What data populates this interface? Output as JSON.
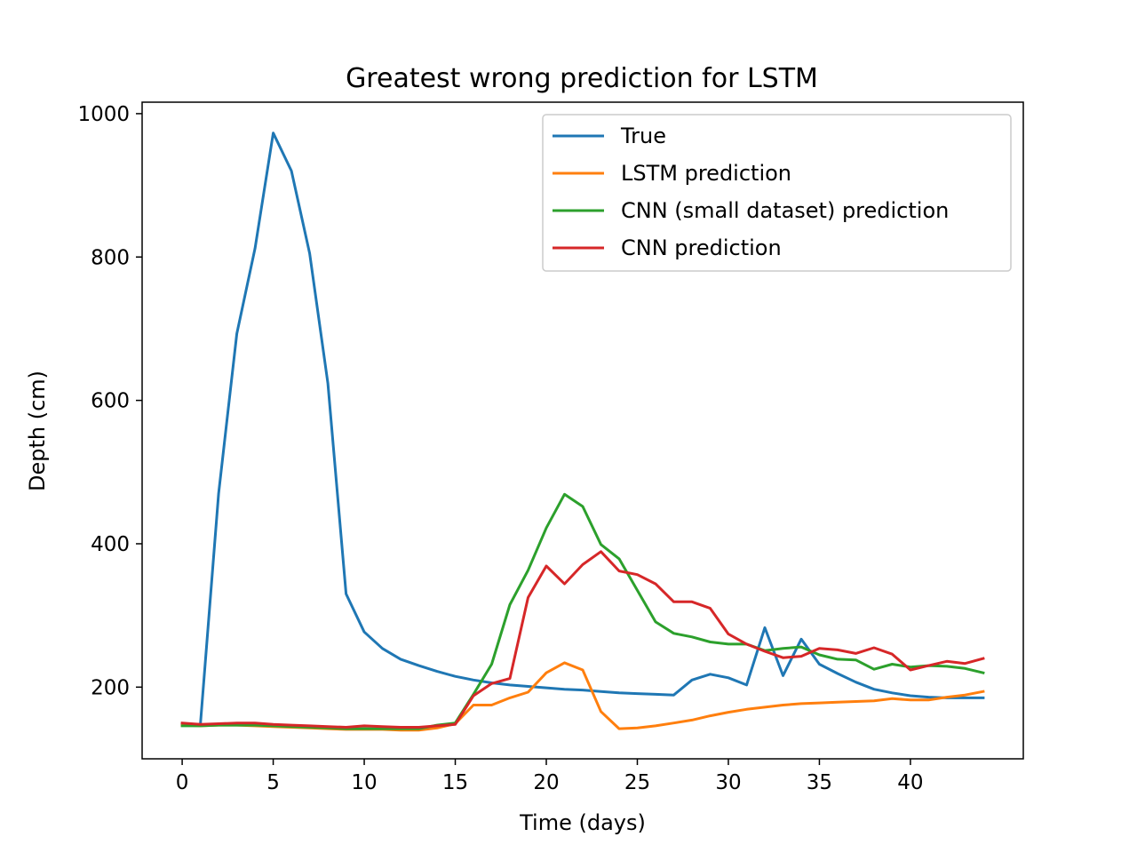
{
  "chart_data": {
    "type": "line",
    "title": "Greatest wrong prediction for LSTM",
    "xlabel": "Time (days)",
    "ylabel": "Depth (cm)",
    "xlim": [
      -2.2,
      46.2
    ],
    "ylim": [
      100,
      1016
    ],
    "xticks": [
      0,
      5,
      10,
      15,
      20,
      25,
      30,
      35,
      40
    ],
    "yticks": [
      200,
      400,
      600,
      800,
      1000
    ],
    "grid": false,
    "legend_position": "top-right",
    "x": [
      0,
      1,
      2,
      3,
      4,
      5,
      6,
      7,
      8,
      9,
      10,
      11,
      12,
      13,
      14,
      15,
      16,
      17,
      18,
      19,
      20,
      21,
      22,
      23,
      24,
      25,
      26,
      27,
      28,
      29,
      30,
      31,
      32,
      33,
      34,
      35,
      36,
      37,
      38,
      39,
      40,
      41,
      42,
      43,
      44
    ],
    "series": [
      {
        "name": "True",
        "color": "#1f77b4",
        "values": [
          148,
          148,
          470,
          693,
          812,
          973,
          920,
          805,
          624,
          330,
          277,
          254,
          239,
          230,
          222,
          215,
          210,
          206,
          203,
          201,
          199,
          197,
          196,
          194,
          192,
          191,
          190,
          189,
          210,
          218,
          213,
          203,
          283,
          216,
          267,
          232,
          219,
          207,
          197,
          192,
          188,
          186,
          185,
          185,
          185
        ]
      },
      {
        "name": "LSTM prediction",
        "color": "#ff7f0e",
        "values": [
          147,
          146,
          147,
          147,
          146,
          145,
          144,
          143,
          142,
          141,
          141,
          141,
          140,
          140,
          143,
          149,
          175,
          175,
          185,
          193,
          220,
          234,
          224,
          166,
          142,
          143,
          146,
          150,
          154,
          160,
          165,
          169,
          172,
          175,
          177,
          178,
          179,
          180,
          181,
          184,
          182,
          182,
          186,
          189,
          194
        ]
      },
      {
        "name": "CNN (small dataset) prediction",
        "color": "#2ca02c",
        "values": [
          146,
          146,
          147,
          147,
          147,
          146,
          145,
          144,
          143,
          142,
          142,
          142,
          142,
          142,
          147,
          150,
          190,
          232,
          315,
          363,
          422,
          469,
          452,
          399,
          379,
          335,
          291,
          275,
          270,
          263,
          260,
          260,
          251,
          254,
          256,
          245,
          239,
          238,
          225,
          232,
          228,
          230,
          229,
          226,
          220
        ]
      },
      {
        "name": "CNN prediction",
        "color": "#d62728",
        "values": [
          150,
          148,
          149,
          150,
          150,
          148,
          147,
          146,
          145,
          144,
          146,
          145,
          144,
          144,
          146,
          148,
          188,
          205,
          212,
          325,
          369,
          344,
          371,
          389,
          362,
          357,
          344,
          319,
          319,
          310,
          274,
          260,
          250,
          241,
          243,
          254,
          252,
          247,
          255,
          246,
          224,
          230,
          236,
          233,
          240
        ]
      }
    ]
  }
}
